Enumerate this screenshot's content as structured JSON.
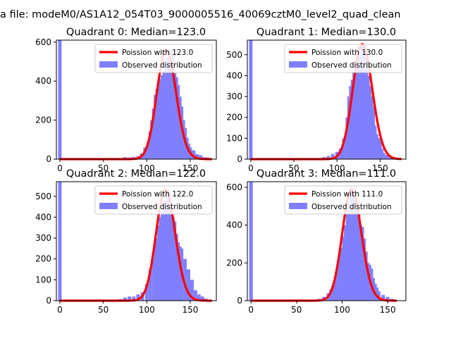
{
  "figure": {
    "suptitle": "a file: modeM0/AS1A12_054T03_9000005516_40069cztM0_level2_quad_clean"
  },
  "colors": {
    "observed": "#8080ff",
    "poisson": "#ff0000"
  },
  "chart_data": [
    {
      "type": "bar",
      "title": "Quadrant 0: Median=123.0",
      "median": 123.0,
      "xlim": [
        -4,
        180
      ],
      "ylim": [
        0,
        610
      ],
      "xticks": [
        "0",
        "50",
        "100",
        "150"
      ],
      "yticks": [
        "0",
        "200",
        "400",
        "600"
      ],
      "legend": {
        "placement": "top-right",
        "entries": [
          "Poission with 123.0",
          "Observed distribution"
        ]
      },
      "series": [
        {
          "name": "Observed distribution",
          "x": [
            0,
            70,
            75,
            80,
            85,
            90,
            94,
            98,
            102,
            104,
            106,
            108,
            110,
            112,
            114,
            116,
            118,
            120,
            122,
            124,
            126,
            128,
            130,
            132,
            134,
            136,
            138,
            140,
            142,
            144,
            146,
            148,
            150,
            154,
            158,
            162,
            166,
            170
          ],
          "values": [
            610,
            5,
            10,
            8,
            12,
            15,
            30,
            60,
            90,
            140,
            200,
            260,
            330,
            360,
            390,
            410,
            430,
            450,
            480,
            520,
            500,
            560,
            540,
            440,
            420,
            380,
            320,
            270,
            200,
            160,
            110,
            80,
            60,
            45,
            25,
            20,
            10,
            8
          ]
        },
        {
          "name": "Poission with 123.0",
          "lambda": 123.0,
          "x_range": [
            0,
            175
          ]
        }
      ]
    },
    {
      "type": "bar",
      "title": "Quadrant 1: Median=130.0",
      "median": 130.0,
      "xlim": [
        -4,
        180
      ],
      "ylim": [
        0,
        570
      ],
      "xticks": [
        "0",
        "50",
        "100",
        "150"
      ],
      "yticks": [
        "0",
        "100",
        "200",
        "300",
        "400",
        "500"
      ],
      "legend": {
        "placement": "top-right",
        "entries": [
          "Poission with 130.0",
          "Observed distribution"
        ]
      },
      "series": [
        {
          "name": "Observed distribution",
          "x": [
            0,
            85,
            90,
            95,
            100,
            104,
            108,
            112,
            114,
            116,
            118,
            120,
            122,
            124,
            126,
            128,
            130,
            132,
            134,
            136,
            138,
            140,
            142,
            144,
            146,
            148,
            150,
            152,
            154,
            158,
            162,
            166,
            170
          ],
          "values": [
            570,
            10,
            15,
            25,
            35,
            50,
            100,
            200,
            300,
            350,
            380,
            420,
            450,
            500,
            540,
            520,
            550,
            530,
            480,
            400,
            350,
            300,
            250,
            160,
            120,
            100,
            90,
            50,
            30,
            20,
            12,
            10,
            5
          ]
        },
        {
          "name": "Poission with 130.0",
          "lambda": 130.0,
          "x_range": [
            0,
            175
          ]
        }
      ]
    },
    {
      "type": "bar",
      "title": "Quadrant 2: Median=122.0",
      "median": 122.0,
      "xlim": [
        -4,
        180
      ],
      "ylim": [
        0,
        570
      ],
      "xticks": [
        "0",
        "50",
        "100",
        "150"
      ],
      "yticks": [
        "0",
        "100",
        "200",
        "300",
        "400",
        "500"
      ],
      "legend": {
        "placement": "top-right",
        "entries": [
          "Poission with 122.0",
          "Observed distribution"
        ]
      },
      "series": [
        {
          "name": "Observed distribution",
          "x": [
            0,
            65,
            70,
            75,
            80,
            85,
            90,
            95,
            100,
            104,
            108,
            110,
            112,
            114,
            116,
            118,
            120,
            122,
            124,
            126,
            128,
            130,
            132,
            134,
            136,
            138,
            140,
            144,
            148,
            152,
            156,
            160,
            164,
            168
          ],
          "values": [
            570,
            5,
            8,
            15,
            20,
            20,
            30,
            40,
            80,
            150,
            200,
            270,
            300,
            360,
            400,
            430,
            480,
            420,
            530,
            500,
            420,
            400,
            380,
            320,
            280,
            260,
            250,
            200,
            150,
            100,
            50,
            30,
            20,
            10
          ]
        },
        {
          "name": "Poission with 122.0",
          "lambda": 122.0,
          "x_range": [
            0,
            175
          ]
        }
      ]
    },
    {
      "type": "bar",
      "title": "Quadrant 3: Median=111.0",
      "median": 111.0,
      "xlim": [
        -4,
        170
      ],
      "ylim": [
        0,
        630
      ],
      "xticks": [
        "0",
        "50",
        "100",
        "150"
      ],
      "yticks": [
        "0",
        "200",
        "400",
        "600"
      ],
      "legend": {
        "placement": "top-right",
        "entries": [
          "Poission with 111.0",
          "Observed distribution"
        ]
      },
      "series": [
        {
          "name": "Observed distribution",
          "x": [
            0,
            75,
            80,
            85,
            88,
            90,
            92,
            94,
            96,
            98,
            100,
            102,
            104,
            106,
            108,
            110,
            112,
            114,
            116,
            118,
            120,
            122,
            124,
            126,
            128,
            130,
            132,
            134,
            136,
            138,
            140,
            145,
            150,
            155
          ],
          "values": [
            630,
            10,
            20,
            40,
            60,
            80,
            110,
            150,
            200,
            250,
            280,
            340,
            400,
            460,
            520,
            560,
            590,
            540,
            500,
            460,
            400,
            390,
            330,
            260,
            200,
            190,
            170,
            120,
            90,
            70,
            50,
            30,
            20,
            10
          ]
        },
        {
          "name": "Poission with 111.0",
          "lambda": 111.0,
          "x_range": [
            0,
            160
          ]
        }
      ]
    }
  ]
}
